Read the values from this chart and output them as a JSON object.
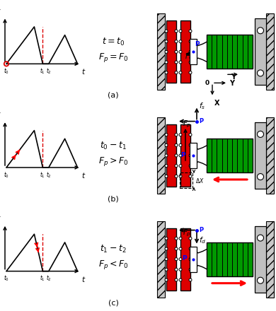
{
  "row_labels": [
    "(a)",
    "(b)",
    "(c)"
  ],
  "eq_labels": [
    [
      "t = t_0",
      "F_p = F_0"
    ],
    [
      "t_0-t_1",
      "F_p > F_0"
    ],
    [
      "t_1-t_2",
      "F_p < F_0"
    ]
  ],
  "red_color": "#dd0000",
  "green_color": "#009900",
  "hatch_color": "#b0b0b0",
  "bracket_color": "#c0c0c0"
}
